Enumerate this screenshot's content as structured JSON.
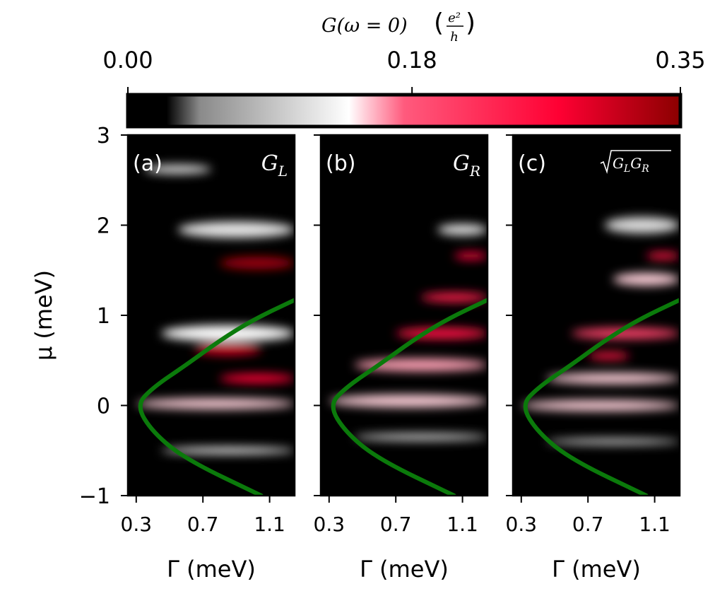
{
  "chart_data": {
    "type": "heatmap",
    "colorbar": {
      "label_main": "G(ω = 0)",
      "label_num": "e²",
      "label_den": "h",
      "ticks": [
        "0.00",
        "0.18",
        "0.35"
      ],
      "tick_values": [
        0.0,
        0.18,
        0.35
      ],
      "range": [
        0.0,
        0.35
      ],
      "colors": [
        "#000000",
        "#000000",
        "#8a8a8a",
        "#ffffff",
        "#ff5a7d",
        "#ff0033",
        "#8b0000"
      ]
    },
    "xlabel": "Γ (meV)",
    "ylabel": "μ (meV)",
    "xlim": [
      0.25,
      1.25
    ],
    "ylim": [
      -1,
      3
    ],
    "xticks": [
      0.3,
      0.7,
      1.1
    ],
    "xtick_labels": [
      "0.3",
      "0.7",
      "1.1"
    ],
    "yticks": [
      3,
      2,
      1,
      0,
      -1
    ],
    "ytick_labels": [
      "3",
      "2",
      "1",
      "0",
      "−1"
    ],
    "curve": {
      "color": "#0b7a0b",
      "description_points": [
        [
          1.05,
          -1.0
        ],
        [
          0.6,
          -0.6
        ],
        [
          0.4,
          -0.3
        ],
        [
          0.3,
          0.0
        ],
        [
          0.4,
          0.2
        ],
        [
          0.6,
          0.45
        ],
        [
          0.8,
          0.72
        ],
        [
          1.0,
          0.95
        ],
        [
          1.25,
          1.17
        ]
      ]
    },
    "panels": [
      {
        "tag": "(a)",
        "label_main": "G",
        "label_sub": "L",
        "sqrt": false,
        "features": [
          {
            "mu": 2.62,
            "g0": 0.35,
            "g1": 0.75,
            "w": 0.1,
            "v": 0.11
          },
          {
            "mu": 1.95,
            "g0": 0.55,
            "g1": 1.25,
            "w": 0.18,
            "v": 0.12
          },
          {
            "mu": 1.58,
            "g0": 0.8,
            "g1": 1.25,
            "w": 0.14,
            "v": 0.34
          },
          {
            "mu": 0.8,
            "g0": 0.45,
            "g1": 1.25,
            "w": 0.18,
            "v": 0.14
          },
          {
            "mu": 0.62,
            "g0": 0.65,
            "g1": 1.05,
            "w": 0.12,
            "v": 0.3
          },
          {
            "mu": 0.3,
            "g0": 0.8,
            "g1": 1.25,
            "w": 0.1,
            "v": 0.27
          },
          {
            "mu": 0.02,
            "g0": 0.3,
            "g1": 1.25,
            "w": 0.12,
            "v": 0.15
          },
          {
            "mu": -0.5,
            "g0": 0.45,
            "g1": 1.25,
            "w": 0.07,
            "v": 0.14
          }
        ]
      },
      {
        "tag": "(b)",
        "label_main": "G",
        "label_sub": "R",
        "sqrt": false,
        "features": [
          {
            "mu": 1.95,
            "g0": 0.95,
            "g1": 1.25,
            "w": 0.12,
            "v": 0.12
          },
          {
            "mu": 1.66,
            "g0": 1.05,
            "g1": 1.25,
            "w": 0.08,
            "v": 0.26
          },
          {
            "mu": 1.2,
            "g0": 0.85,
            "g1": 1.25,
            "w": 0.1,
            "v": 0.24
          },
          {
            "mu": 0.8,
            "g0": 0.7,
            "g1": 1.25,
            "w": 0.12,
            "v": 0.25
          },
          {
            "mu": 0.45,
            "g0": 0.45,
            "g1": 1.25,
            "w": 0.14,
            "v": 0.16
          },
          {
            "mu": 0.05,
            "g0": 0.3,
            "g1": 1.25,
            "w": 0.14,
            "v": 0.15
          },
          {
            "mu": -0.35,
            "g0": 0.45,
            "g1": 1.25,
            "w": 0.08,
            "v": 0.1
          }
        ]
      },
      {
        "tag": "(c)",
        "label_main": "G",
        "label_sub": "L",
        "label_main2": "G",
        "label_sub2": "R",
        "sqrt": true,
        "features": [
          {
            "mu": 2.0,
            "g0": 0.8,
            "g1": 1.25,
            "w": 0.18,
            "v": 0.11
          },
          {
            "mu": 1.66,
            "g0": 1.05,
            "g1": 1.25,
            "w": 0.08,
            "v": 0.25
          },
          {
            "mu": 1.4,
            "g0": 0.85,
            "g1": 1.25,
            "w": 0.14,
            "v": 0.15
          },
          {
            "mu": 0.8,
            "g0": 0.6,
            "g1": 1.25,
            "w": 0.12,
            "v": 0.2
          },
          {
            "mu": 0.55,
            "g0": 0.7,
            "g1": 0.95,
            "w": 0.08,
            "v": 0.25
          },
          {
            "mu": 0.3,
            "g0": 0.45,
            "g1": 1.25,
            "w": 0.12,
            "v": 0.15
          },
          {
            "mu": 0.0,
            "g0": 0.3,
            "g1": 1.25,
            "w": 0.12,
            "v": 0.15
          },
          {
            "mu": -0.4,
            "g0": 0.45,
            "g1": 1.25,
            "w": 0.07,
            "v": 0.1
          }
        ]
      }
    ]
  }
}
